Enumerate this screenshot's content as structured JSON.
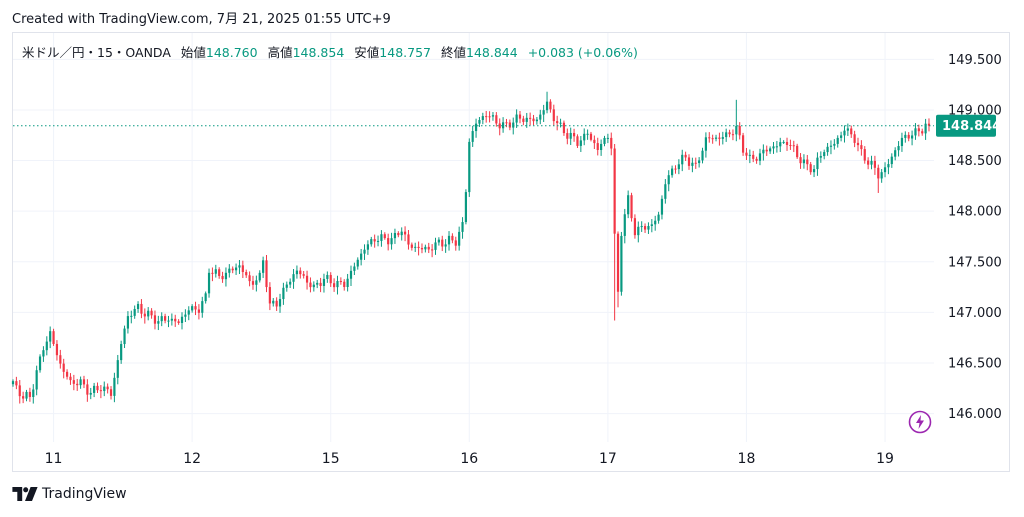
{
  "header": {
    "created": "Created with TradingView.com, 7月 21, 2025 01:55 UTC+9"
  },
  "legend": {
    "symbol": "米ドル／円・15・OANDA",
    "open_label": "始値",
    "open": "148.760",
    "high_label": "高値",
    "high": "148.854",
    "low_label": "安値",
    "low": "148.757",
    "close_label": "終値",
    "close": "148.844",
    "change": "+0.083 (+0.06%)"
  },
  "last_price_badge": "148.844",
  "footer": {
    "brand": "TradingView"
  },
  "icons": {
    "logo": "tradingview-logo-icon",
    "flash": "lightning-icon"
  },
  "colors": {
    "up": "#089981",
    "down": "#f23645",
    "badge": "#089981",
    "flash": "#9c27b0"
  },
  "chart_data": {
    "type": "candlestick",
    "y_ticks": [
      "149.500",
      "149.000",
      "148.500",
      "148.000",
      "147.500",
      "147.000",
      "146.500",
      "146.000"
    ],
    "y_tick_values": [
      149.5,
      149.0,
      148.5,
      148.0,
      147.5,
      147.0,
      146.5,
      146.0
    ],
    "x_ticks": [
      "11",
      "12",
      "15",
      "16",
      "17",
      "18",
      "19"
    ],
    "ylim": [
      145.72,
      149.76
    ],
    "last_price": 148.844,
    "anchors": [
      [
        0,
        146.3
      ],
      [
        3,
        146.15
      ],
      [
        5,
        146.18
      ],
      [
        9,
        146.65
      ],
      [
        11,
        146.78
      ],
      [
        14,
        146.5
      ],
      [
        17,
        146.3
      ],
      [
        20,
        146.3
      ],
      [
        23,
        146.22
      ],
      [
        26,
        146.25
      ],
      [
        29,
        146.2
      ],
      [
        32,
        146.7
      ],
      [
        34,
        146.95
      ],
      [
        37,
        147.05
      ],
      [
        40,
        146.98
      ],
      [
        43,
        146.9
      ],
      [
        46,
        146.95
      ],
      [
        49,
        146.9
      ],
      [
        52,
        147.02
      ],
      [
        55,
        147.05
      ],
      [
        57,
        147.15
      ],
      [
        58,
        147.42
      ],
      [
        61,
        147.35
      ],
      [
        64,
        147.42
      ],
      [
        67,
        147.45
      ],
      [
        70,
        147.3
      ],
      [
        73,
        147.35
      ],
      [
        74,
        147.52
      ],
      [
        76,
        147.05
      ],
      [
        78,
        147.1
      ],
      [
        81,
        147.28
      ],
      [
        84,
        147.4
      ],
      [
        86,
        147.35
      ],
      [
        89,
        147.25
      ],
      [
        92,
        147.32
      ],
      [
        95,
        147.3
      ],
      [
        98,
        147.28
      ],
      [
        100,
        147.38
      ],
      [
        102,
        147.52
      ],
      [
        104,
        147.65
      ],
      [
        107,
        147.72
      ],
      [
        110,
        147.72
      ],
      [
        113,
        147.75
      ],
      [
        115,
        147.82
      ],
      [
        117,
        147.65
      ],
      [
        120,
        147.65
      ],
      [
        123,
        147.62
      ],
      [
        126,
        147.68
      ],
      [
        129,
        147.72
      ],
      [
        131,
        147.7
      ],
      [
        133,
        147.85
      ],
      [
        134,
        148.2
      ],
      [
        135,
        148.7
      ],
      [
        137,
        148.88
      ],
      [
        140,
        148.95
      ],
      [
        143,
        148.88
      ],
      [
        146,
        148.85
      ],
      [
        149,
        148.9
      ],
      [
        152,
        148.92
      ],
      [
        155,
        148.9
      ],
      [
        158,
        149.05
      ],
      [
        161,
        148.88
      ],
      [
        164,
        148.75
      ],
      [
        167,
        148.68
      ],
      [
        170,
        148.78
      ],
      [
        173,
        148.6
      ],
      [
        176,
        148.75
      ],
      [
        177,
        148.65
      ],
      [
        178,
        147.75
      ],
      [
        179,
        147.2
      ],
      [
        180,
        147.8
      ],
      [
        182,
        148.1
      ],
      [
        184,
        147.8
      ],
      [
        186,
        147.85
      ],
      [
        189,
        147.85
      ],
      [
        191,
        147.95
      ],
      [
        193,
        148.3
      ],
      [
        196,
        148.45
      ],
      [
        199,
        148.52
      ],
      [
        202,
        148.45
      ],
      [
        205,
        148.7
      ],
      [
        208,
        148.72
      ],
      [
        211,
        148.76
      ],
      [
        214,
        148.8
      ],
      [
        216,
        148.62
      ],
      [
        218,
        148.52
      ],
      [
        221,
        148.55
      ],
      [
        224,
        148.62
      ],
      [
        227,
        148.68
      ],
      [
        229,
        148.68
      ],
      [
        232,
        148.55
      ],
      [
        235,
        148.45
      ],
      [
        237,
        148.42
      ],
      [
        240,
        148.6
      ],
      [
        243,
        148.68
      ],
      [
        246,
        148.8
      ],
      [
        249,
        148.72
      ],
      [
        251,
        148.58
      ],
      [
        254,
        148.45
      ],
      [
        256,
        148.35
      ],
      [
        258,
        148.42
      ],
      [
        260,
        148.55
      ],
      [
        263,
        148.7
      ],
      [
        266,
        148.77
      ],
      [
        268,
        148.8
      ],
      [
        270,
        148.84
      ]
    ],
    "spikes": [
      {
        "bar": 158,
        "high": 149.18
      },
      {
        "bar": 178,
        "low": 146.92
      },
      {
        "bar": 179,
        "low": 147.05
      },
      {
        "bar": 214,
        "high": 149.1
      },
      {
        "bar": 256,
        "low": 148.18
      }
    ]
  }
}
